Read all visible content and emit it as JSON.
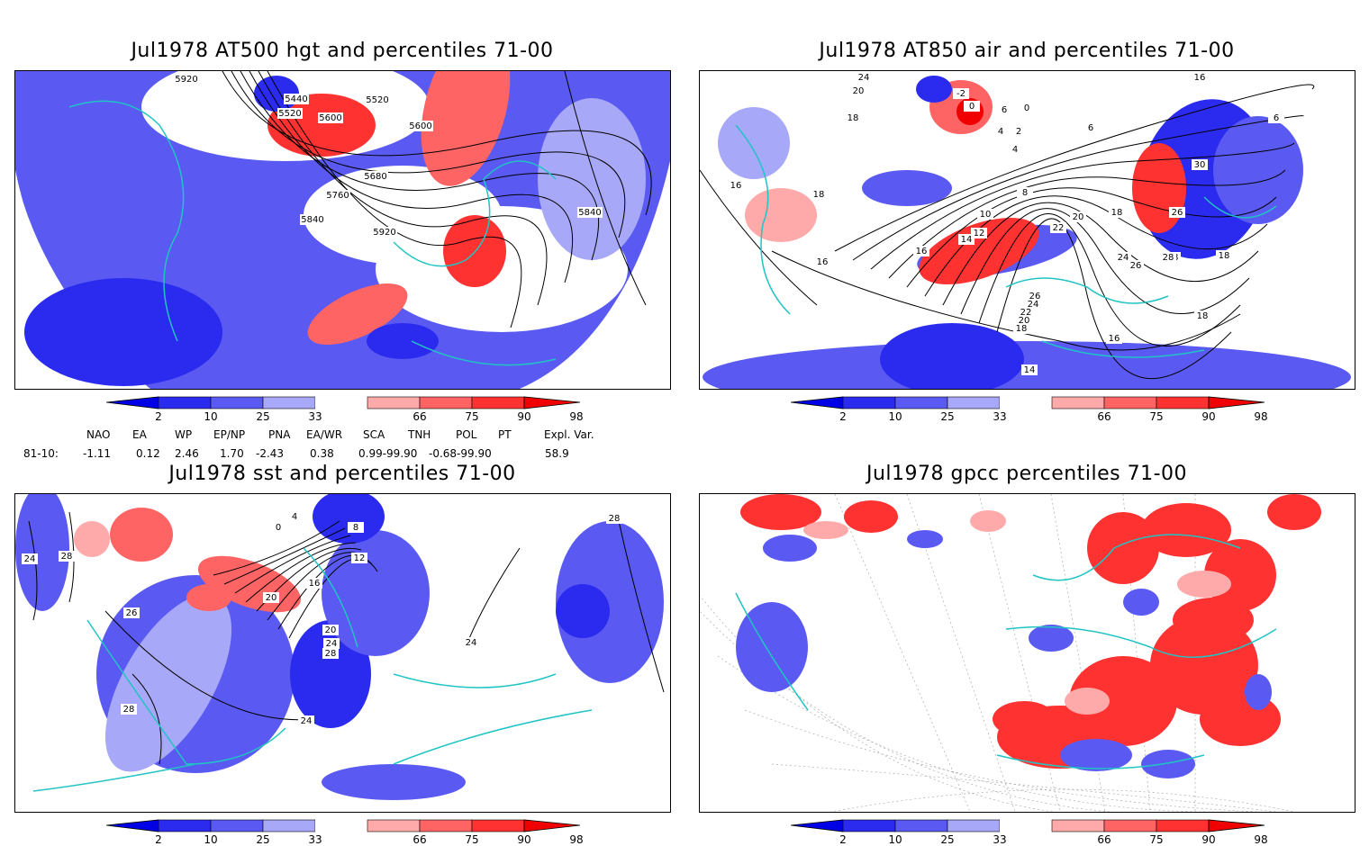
{
  "panels": [
    {
      "title": "Jul1978 AT500 hgt and percentiles 71-00",
      "contour_labels": [
        "5920",
        "5440",
        "5520",
        "5600",
        "5520",
        "5600",
        "5680",
        "5760",
        "5840",
        "5920",
        "5840"
      ]
    },
    {
      "title": "Jul1978 AT850 air and percentiles 71-00",
      "contour_labels": [
        "24",
        "20",
        "18",
        "-2",
        "0",
        "6",
        "4",
        "0",
        "2",
        "4",
        "6",
        "8",
        "10",
        "12",
        "14",
        "16",
        "16",
        "18",
        "16",
        "20",
        "22",
        "18",
        "24",
        "26",
        "28",
        "26",
        "24",
        "22",
        "20",
        "18",
        "16",
        "14",
        "30",
        "26",
        "28",
        "18",
        "18",
        "16",
        "6"
      ]
    },
    {
      "title": "Jul1978 sst and percentiles 71-00",
      "contour_labels": [
        "24",
        "28",
        "26",
        "0",
        "4",
        "8",
        "12",
        "16",
        "20",
        "20",
        "24",
        "28",
        "24",
        "28",
        "28",
        "24"
      ]
    },
    {
      "title": "Jul1978 gpcc percentiles 71-00",
      "contour_labels": []
    }
  ],
  "colorbar": {
    "labels": [
      "2",
      "10",
      "25",
      "33",
      "66",
      "75",
      "90",
      "98"
    ],
    "colors": {
      "below_2": "#0000e6",
      "c2_10": "#2b2bf0",
      "c10_25": "#5a5af2",
      "c25_33": "#a8a8f8",
      "c33_66": "#ffffff",
      "c66_75": "#ffaaaa",
      "c75_90": "#ff6464",
      "c90_98": "#ff3232",
      "above_98": "#f00000"
    }
  },
  "indices": {
    "headers": [
      "NAO",
      "EA",
      "WP",
      "EP/NP",
      "PNA",
      "EA/WR",
      "SCA",
      "TNH",
      "POL",
      "PT",
      "Expl. Var."
    ],
    "row_label": "81-10:",
    "values": [
      "-1.11",
      "0.12",
      "2.46",
      "1.70",
      "-2.43",
      "0.38",
      "0.99-99.90",
      "-0.68-99.90",
      "",
      "",
      "58.9"
    ]
  },
  "colors": {
    "coast": "#20c4c4",
    "contour": "#000000"
  }
}
